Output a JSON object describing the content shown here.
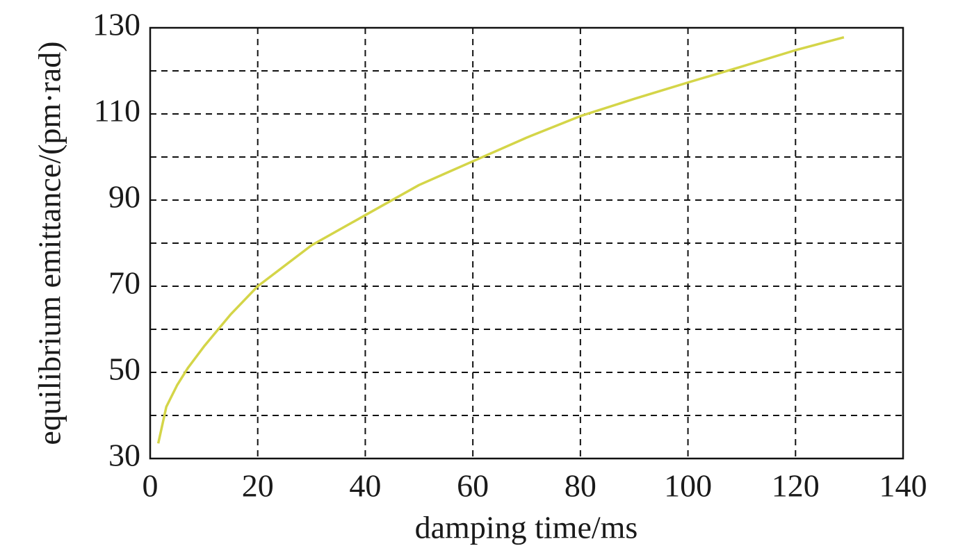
{
  "chart_data": {
    "type": "line",
    "x_label": "damping time/ms",
    "y_label": "equilibrium emittance/(pm·rad)",
    "x": [
      1.5,
      3,
      5,
      7,
      10,
      15,
      20,
      30,
      40,
      50,
      60,
      70,
      80,
      90,
      100,
      110,
      120,
      129
    ],
    "series": [
      {
        "color": "#d4d548",
        "values": [
          33.5,
          42,
          47,
          51,
          56,
          63.5,
          70,
          79.5,
          86.5,
          93.5,
          99,
          104.5,
          109.5,
          113.5,
          117.3,
          121,
          124.8,
          127.8
        ]
      }
    ],
    "xlim": [
      0,
      140
    ],
    "ylim": [
      30,
      130
    ],
    "xticks": [
      0,
      20,
      40,
      60,
      80,
      100,
      120,
      140
    ],
    "yticks": [
      30,
      50,
      70,
      90,
      110,
      130
    ],
    "minor_yticks": [
      40,
      60,
      80,
      100,
      120
    ],
    "grid": true
  }
}
